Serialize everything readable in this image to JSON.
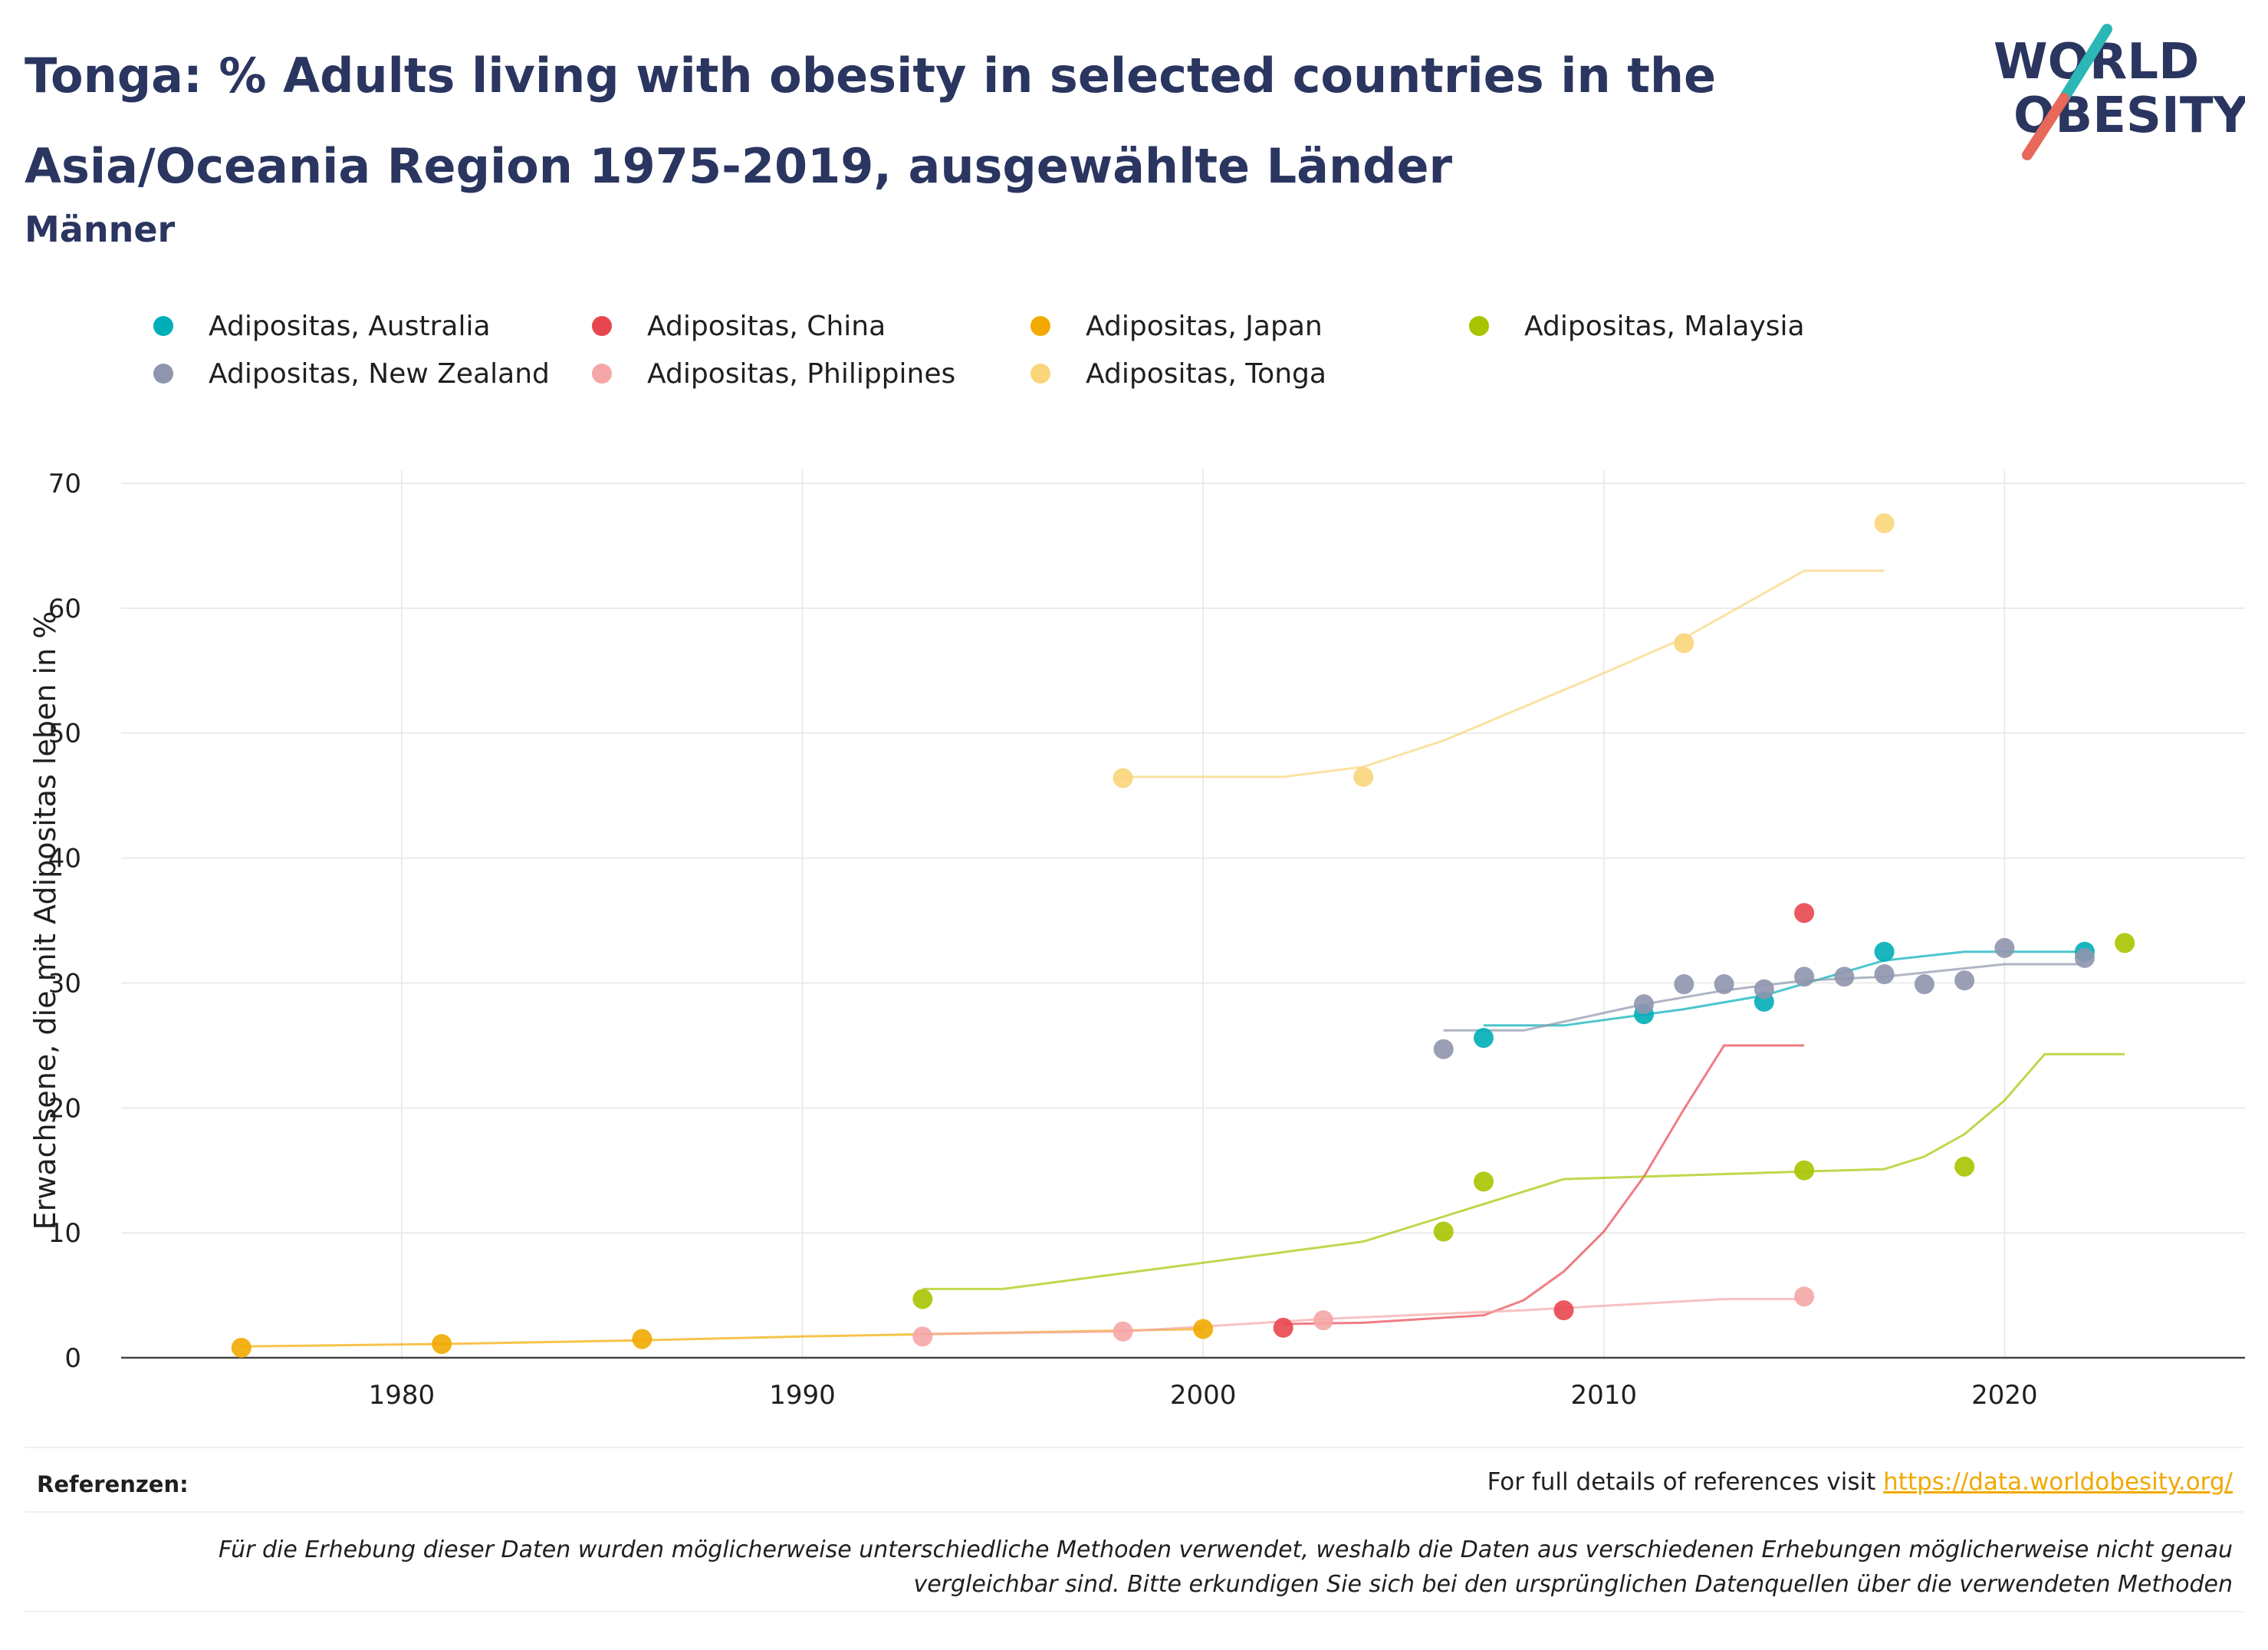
{
  "header": {
    "title": "Tonga: % Adults living with obesity in selected countries in the Asia/Oceania Region 1975-2019, ausgewählte Länder",
    "subtitle": "Männer"
  },
  "logo": {
    "line1": "WORLD",
    "line2": "OBESITY",
    "accent_colors": [
      "#2ab7b6",
      "#e8685a"
    ]
  },
  "footer": {
    "references_label": "Referenzen:",
    "references_text": "For full details of references visit ",
    "references_link": "https://data.worldobesity.org/",
    "disclaimer": "Für die Erhebung dieser Daten wurden möglicherweise unterschiedliche Methoden verwendet, weshalb die Daten aus verschiedenen Erhebungen möglicherweise nicht genau vergleichbar sind. Bitte erkundigen Sie sich bei den ursprünglichen Datenquellen über die verwendeten Methoden"
  },
  "chart_data": {
    "type": "scatter",
    "ylabel": "Erwachsene, die mit Adipositas leben in %",
    "xlabel": "",
    "xlim": [
      1973,
      2026
    ],
    "ylim": [
      0,
      70
    ],
    "xticks": [
      1980,
      1990,
      2000,
      2010,
      2020
    ],
    "yticks": [
      0,
      10,
      20,
      30,
      40,
      50,
      60,
      70
    ],
    "grid": true,
    "legend_position": "top",
    "series": [
      {
        "name": "Adipositas, Australia",
        "color": "#00aeb8",
        "points": [
          [
            2007,
            25.6
          ],
          [
            2011,
            27.5
          ],
          [
            2014,
            28.5
          ],
          [
            2017,
            32.5
          ],
          [
            2022,
            32.5
          ]
        ],
        "trend": [
          [
            2007,
            26.6
          ],
          [
            2009,
            26.6
          ],
          [
            2012,
            27.9
          ],
          [
            2014,
            29.0
          ],
          [
            2017,
            31.8
          ],
          [
            2019,
            32.5
          ],
          [
            2022,
            32.5
          ]
        ]
      },
      {
        "name": "Adipositas, China",
        "color": "#e8464f",
        "points": [
          [
            2002,
            2.4
          ],
          [
            2009,
            3.8
          ],
          [
            2015,
            35.6
          ]
        ],
        "trend": [
          [
            2002,
            2.7
          ],
          [
            2004,
            2.8
          ],
          [
            2007,
            3.4
          ],
          [
            2008,
            4.6
          ],
          [
            2009,
            6.9
          ],
          [
            2010,
            10.1
          ],
          [
            2011,
            14.5
          ],
          [
            2012,
            19.9
          ],
          [
            2013,
            25.0
          ],
          [
            2015,
            25.0
          ]
        ]
      },
      {
        "name": "Adipositas, Japan",
        "color": "#f2aa00",
        "points": [
          [
            1976,
            0.8
          ],
          [
            1981,
            1.1
          ],
          [
            1986,
            1.5
          ],
          [
            2000,
            2.3
          ]
        ],
        "trend": [
          [
            1976,
            0.9
          ],
          [
            1981,
            1.1
          ],
          [
            1986,
            1.4
          ],
          [
            1990,
            1.7
          ],
          [
            1995,
            2.0
          ],
          [
            2000,
            2.3
          ]
        ]
      },
      {
        "name": "Adipositas, Malaysia",
        "color": "#a8c400",
        "points": [
          [
            1993,
            4.7
          ],
          [
            2006,
            10.1
          ],
          [
            2007,
            14.1
          ],
          [
            2015,
            15.0
          ],
          [
            2019,
            15.3
          ],
          [
            2023,
            33.2
          ]
        ],
        "trend": [
          [
            1993,
            5.5
          ],
          [
            1995,
            5.5
          ],
          [
            2000,
            7.6
          ],
          [
            2004,
            9.3
          ],
          [
            2006,
            11.3
          ],
          [
            2009,
            14.3
          ],
          [
            2015,
            14.9
          ],
          [
            2017,
            15.1
          ],
          [
            2018,
            16.1
          ],
          [
            2019,
            17.9
          ],
          [
            2020,
            20.6
          ],
          [
            2021,
            24.3
          ],
          [
            2023,
            24.3
          ]
        ]
      },
      {
        "name": "Adipositas, New Zealand",
        "color": "#8f95ad",
        "points": [
          [
            2006,
            24.7
          ],
          [
            2011,
            28.3
          ],
          [
            2012,
            29.9
          ],
          [
            2013,
            29.9
          ],
          [
            2014,
            29.5
          ],
          [
            2015,
            30.5
          ],
          [
            2016,
            30.5
          ],
          [
            2017,
            30.7
          ],
          [
            2018,
            29.9
          ],
          [
            2019,
            30.2
          ],
          [
            2020,
            32.8
          ],
          [
            2022,
            32.0
          ]
        ],
        "trend": [
          [
            2006,
            26.2
          ],
          [
            2008,
            26.2
          ],
          [
            2011,
            28.3
          ],
          [
            2013,
            29.4
          ],
          [
            2015,
            30.2
          ],
          [
            2017,
            30.5
          ],
          [
            2020,
            31.5
          ],
          [
            2022,
            31.5
          ]
        ]
      },
      {
        "name": "Adipositas, Philippines",
        "color": "#f5a6a6",
        "points": [
          [
            1993,
            1.7
          ],
          [
            1998,
            2.1
          ],
          [
            2003,
            3.0
          ],
          [
            2015,
            4.9
          ]
        ],
        "trend": [
          [
            1993,
            1.9
          ],
          [
            1998,
            2.1
          ],
          [
            2003,
            3.1
          ],
          [
            2008,
            3.8
          ],
          [
            2013,
            4.7
          ],
          [
            2015,
            4.7
          ]
        ]
      },
      {
        "name": "Adipositas, Tonga",
        "color": "#fad57a",
        "points": [
          [
            1998,
            46.4
          ],
          [
            2004,
            46.5
          ],
          [
            2012,
            57.2
          ],
          [
            2017,
            66.8
          ]
        ],
        "trend": [
          [
            1998,
            46.5
          ],
          [
            2002,
            46.5
          ],
          [
            2004,
            47.3
          ],
          [
            2006,
            49.4
          ],
          [
            2008,
            52.1
          ],
          [
            2010,
            54.8
          ],
          [
            2012,
            57.6
          ],
          [
            2015,
            63.0
          ],
          [
            2017,
            63.0
          ]
        ]
      }
    ]
  }
}
